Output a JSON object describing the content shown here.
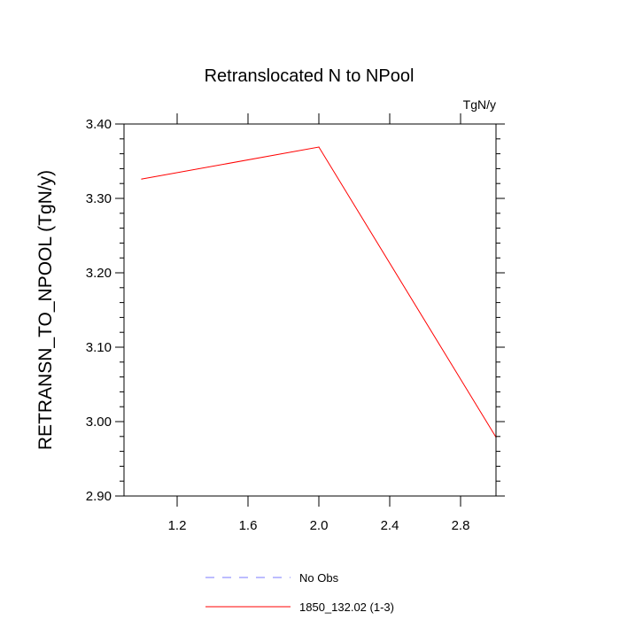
{
  "chart_data": {
    "type": "line",
    "title": "Retranslocated N to NPool",
    "units_label": "TgN/y",
    "xlabel": "",
    "ylabel": "RETRANSN_TO_NPOOL  (TgN/y)",
    "xlim": [
      0.9,
      3.0
    ],
    "ylim": [
      2.9,
      3.4
    ],
    "x_ticks": [
      1.2,
      1.6,
      2.0,
      2.4,
      2.8
    ],
    "x_tick_labels": [
      "1.2",
      "1.6",
      "2.0",
      "2.4",
      "2.8"
    ],
    "y_ticks": [
      2.9,
      3.0,
      3.1,
      3.2,
      3.3,
      3.4
    ],
    "y_tick_labels": [
      "2.90",
      "3.00",
      "3.10",
      "3.20",
      "3.30",
      "3.40"
    ],
    "grid": false,
    "legend_position": "bottom",
    "series": [
      {
        "name": "1850_132.02 (1-3)",
        "color": "#ff0000",
        "dash": "solid",
        "x": [
          1.0,
          2.0,
          3.0
        ],
        "y": [
          3.326,
          3.369,
          2.979
        ]
      }
    ],
    "legend": [
      {
        "label": "No Obs",
        "color": "#7b7bff",
        "dash": "dashed"
      },
      {
        "label": "1850_132.02 (1-3)",
        "color": "#ff0000",
        "dash": "solid"
      }
    ]
  }
}
